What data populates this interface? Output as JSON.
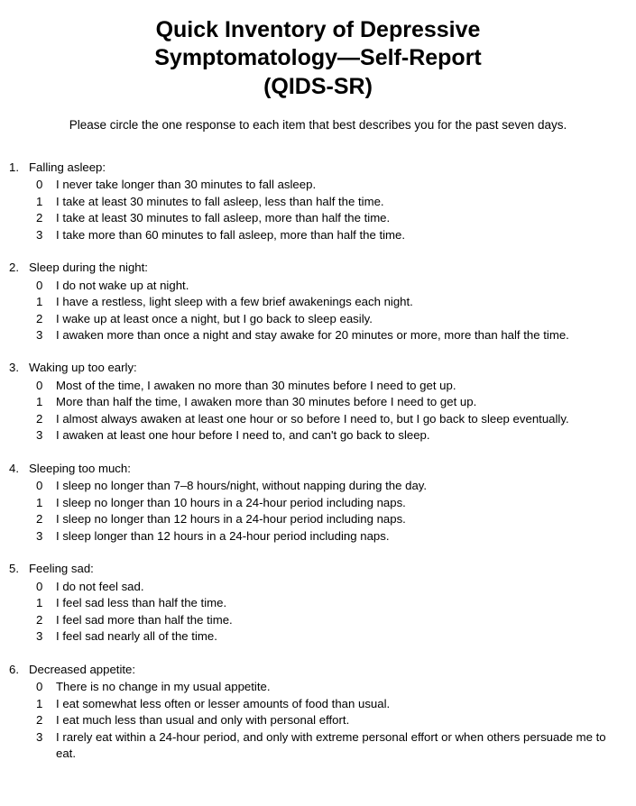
{
  "title_lines": [
    "Quick Inventory of Depressive",
    "Symptomatology—Self-Report",
    "(QIDS-SR)"
  ],
  "instructions": "Please circle the one response to each item that best describes you for the past seven days.",
  "questions": [
    {
      "num": "1.",
      "title": "Falling asleep:",
      "options": [
        {
          "score": "0",
          "text": "I never take longer than 30 minutes to fall asleep."
        },
        {
          "score": "1",
          "text": "I take at least 30 minutes to fall asleep, less than half the time."
        },
        {
          "score": "2",
          "text": "I take at least 30 minutes to fall asleep, more than half the time."
        },
        {
          "score": "3",
          "text": "I take more than 60 minutes to fall asleep, more than half the time."
        }
      ]
    },
    {
      "num": "2.",
      "title": "Sleep during the night:",
      "options": [
        {
          "score": "0",
          "text": "I do not wake up at night."
        },
        {
          "score": "1",
          "text": "I have a restless, light sleep with a few brief awakenings each night."
        },
        {
          "score": "2",
          "text": "I wake up at least once a night, but I go back to sleep easily."
        },
        {
          "score": "3",
          "text": "I awaken more than once a night and stay awake for 20 minutes or more, more than half the time."
        }
      ]
    },
    {
      "num": "3.",
      "title": "Waking up too early:",
      "options": [
        {
          "score": "0",
          "text": "Most of the time, I awaken no more than 30 minutes before I need to get up."
        },
        {
          "score": "1",
          "text": "More than half the time, I awaken more than 30 minutes before I need to get up."
        },
        {
          "score": "2",
          "text": "I almost always awaken at least one hour or so before I need to, but I go back to sleep eventually."
        },
        {
          "score": "3",
          "text": "I awaken at least one hour before I need to, and can't go back to sleep."
        }
      ]
    },
    {
      "num": "4.",
      "title": "Sleeping too much:",
      "options": [
        {
          "score": "0",
          "text": "I sleep no longer than 7–8 hours/night, without napping during the day."
        },
        {
          "score": "1",
          "text": "I sleep no longer than 10 hours in a 24-hour period including naps."
        },
        {
          "score": "2",
          "text": "I sleep no longer than 12 hours in a 24-hour period including naps."
        },
        {
          "score": "3",
          "text": "I sleep longer than 12 hours in a 24-hour period including naps."
        }
      ]
    },
    {
      "num": "5.",
      "title": "Feeling sad:",
      "options": [
        {
          "score": "0",
          "text": "I do not feel sad."
        },
        {
          "score": "1",
          "text": "I feel sad less than half the time."
        },
        {
          "score": "2",
          "text": "I feel sad more than half the time."
        },
        {
          "score": "3",
          "text": "I feel sad nearly all of the time."
        }
      ]
    },
    {
      "num": "6.",
      "title": "Decreased appetite:",
      "options": [
        {
          "score": "0",
          "text": "There is no change in my usual appetite."
        },
        {
          "score": "1",
          "text": "I eat somewhat less often or lesser amounts of food than usual."
        },
        {
          "score": "2",
          "text": "I eat much less than usual and only with personal effort."
        },
        {
          "score": "3",
          "text": "I rarely eat within a 24-hour period, and only with extreme personal effort or when others persuade me to eat."
        }
      ]
    }
  ]
}
